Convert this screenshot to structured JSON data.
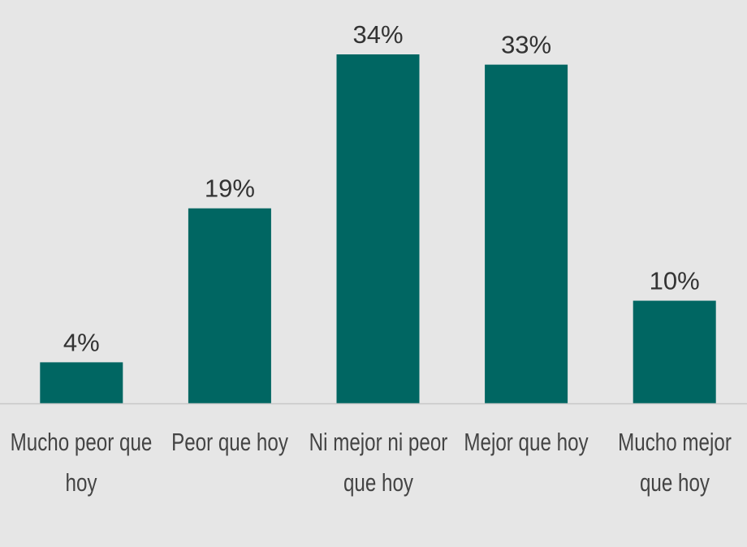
{
  "chart_data": {
    "type": "bar",
    "categories": [
      "Mucho peor que hoy",
      "Peor que hoy",
      "Ni mejor ni peor que hoy",
      "Mejor que hoy",
      "Mucho mejor que hoy"
    ],
    "values": [
      4,
      19,
      34,
      33,
      10
    ],
    "value_labels": [
      "4%",
      "19%",
      "34%",
      "33%",
      "10%"
    ],
    "color": "#006662"
  }
}
